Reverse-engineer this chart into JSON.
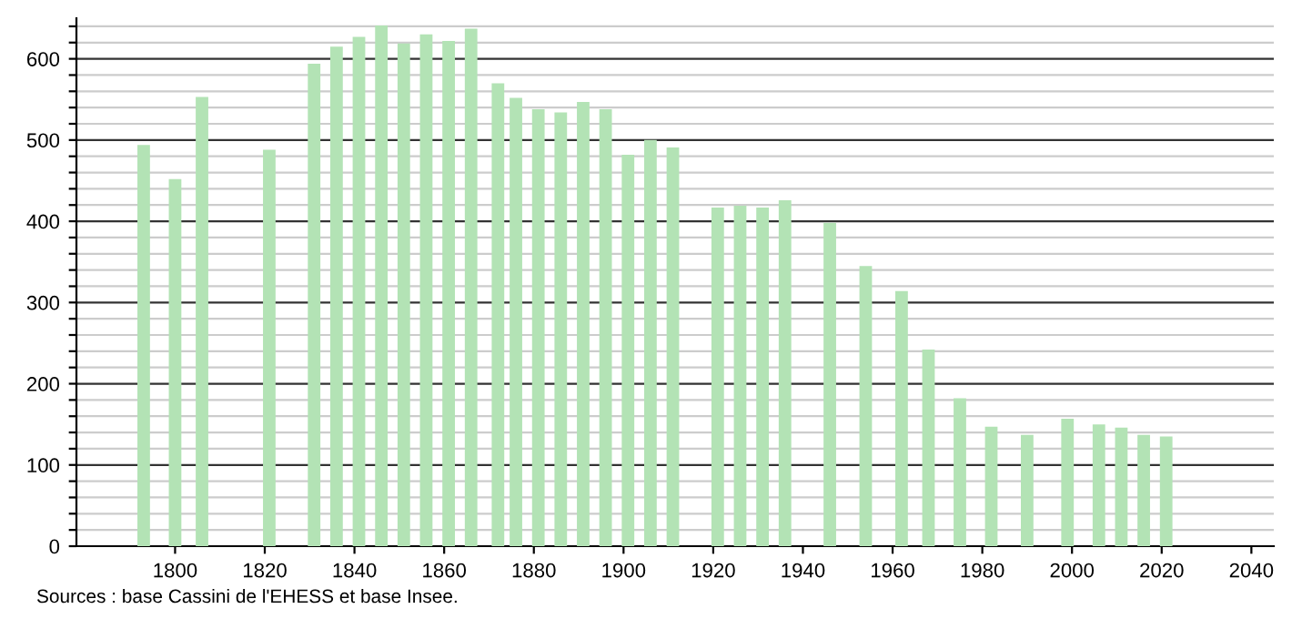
{
  "chart_data": {
    "type": "bar",
    "x": [
      1793,
      1800,
      1806,
      1821,
      1831,
      1836,
      1841,
      1846,
      1851,
      1856,
      1861,
      1866,
      1872,
      1876,
      1881,
      1886,
      1891,
      1896,
      1901,
      1906,
      1911,
      1921,
      1926,
      1931,
      1936,
      1946,
      1954,
      1962,
      1968,
      1975,
      1982,
      1990,
      1999,
      2006,
      2011,
      2016,
      2021
    ],
    "values": [
      494,
      452,
      553,
      488,
      594,
      615,
      627,
      641,
      619,
      630,
      622,
      637,
      570,
      552,
      538,
      534,
      547,
      538,
      482,
      500,
      491,
      417,
      419,
      417,
      426,
      398,
      345,
      314,
      242,
      182,
      147,
      137,
      157,
      150,
      146,
      137,
      135
    ],
    "color": "#b3e3b5",
    "xlim": [
      1778,
      2045
    ],
    "xticks": [
      1800,
      1820,
      1840,
      1860,
      1880,
      1900,
      1920,
      1940,
      1960,
      1980,
      2000,
      2020,
      2040
    ],
    "ylim": [
      0,
      650
    ],
    "yticks": [
      0,
      {
        "value": 20,
        "label": null
      },
      {
        "value": 40,
        "label": null
      },
      {
        "value": 60,
        "label": null
      },
      {
        "value": 80,
        "label": null
      },
      100,
      {
        "value": 120,
        "label": null
      },
      {
        "value": 140,
        "label": null
      },
      {
        "value": 160,
        "label": null
      },
      {
        "value": 180,
        "label": null
      },
      200,
      {
        "value": 220,
        "label": null
      },
      {
        "value": 240,
        "label": null
      },
      {
        "value": 260,
        "label": null
      },
      {
        "value": 280,
        "label": null
      },
      300,
      {
        "value": 320,
        "label": null
      },
      {
        "value": 340,
        "label": null
      },
      {
        "value": 360,
        "label": null
      },
      {
        "value": 380,
        "label": null
      },
      400,
      {
        "value": 420,
        "label": null
      },
      {
        "value": 440,
        "label": null
      },
      {
        "value": 460,
        "label": null
      },
      {
        "value": 480,
        "label": null
      },
      500,
      {
        "value": 520,
        "label": null
      },
      {
        "value": 540,
        "label": null
      },
      {
        "value": 560,
        "label": null
      },
      {
        "value": 580,
        "label": null
      },
      600,
      {
        "value": 620,
        "label": null
      },
      {
        "value": 640,
        "label": null
      }
    ],
    "grid": "y",
    "annotations": [
      "Sources : base Cassini de l'EHESS et base Insee."
    ]
  }
}
